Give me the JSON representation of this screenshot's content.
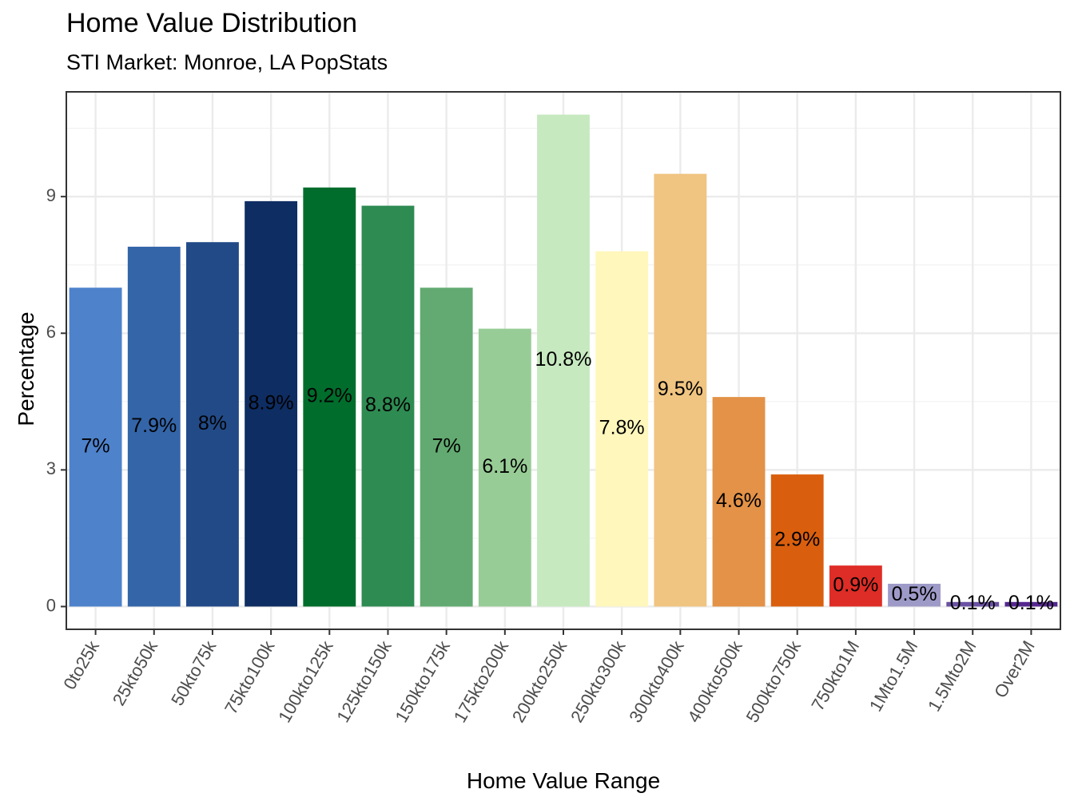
{
  "chart_data": {
    "type": "bar",
    "title": "Home Value Distribution",
    "subtitle": "STI Market: Monroe, LA PopStats",
    "xlabel": "Home Value Range",
    "ylabel": "Percentage",
    "ylim": [
      -0.5,
      11.3
    ],
    "y_ticks": [
      0,
      3,
      6,
      9
    ],
    "y_tick_labels": [
      "0",
      "3",
      "6",
      "9"
    ],
    "grid": true,
    "legend": "none",
    "categories": [
      "0to25k",
      "25kto50k",
      "50kto75k",
      "75kto100k",
      "100kto125k",
      "125kto150k",
      "150kto175k",
      "175kto200k",
      "200kto250k",
      "250kto300k",
      "300kto400k",
      "400kto500k",
      "500kto750k",
      "750kto1M",
      "1Mto1.5M",
      "1.5Mto2M",
      "Over2M"
    ],
    "values": [
      7.0,
      7.9,
      8.0,
      8.9,
      9.2,
      8.8,
      7.0,
      6.1,
      10.8,
      7.8,
      9.5,
      4.6,
      2.9,
      0.9,
      0.5,
      0.1,
      0.1
    ],
    "labels": [
      "7%",
      "7.9%",
      "8%",
      "8.9%",
      "9.2%",
      "8.8%",
      "7%",
      "6.1%",
      "10.8%",
      "7.8%",
      "9.5%",
      "4.6%",
      "2.9%",
      "0.9%",
      "0.5%",
      "0.1%",
      "0.1%"
    ],
    "colors": [
      "#4e82cb",
      "#3465a8",
      "#224a87",
      "#0e2d62",
      "#006d2c",
      "#2e8b52",
      "#62aa71",
      "#98cc96",
      "#c7e9c0",
      "#fff7bc",
      "#f0c481",
      "#e39247",
      "#d95f0e",
      "#de2d26",
      "#9e9ac8",
      "#6a51a3",
      "#54278f"
    ]
  }
}
